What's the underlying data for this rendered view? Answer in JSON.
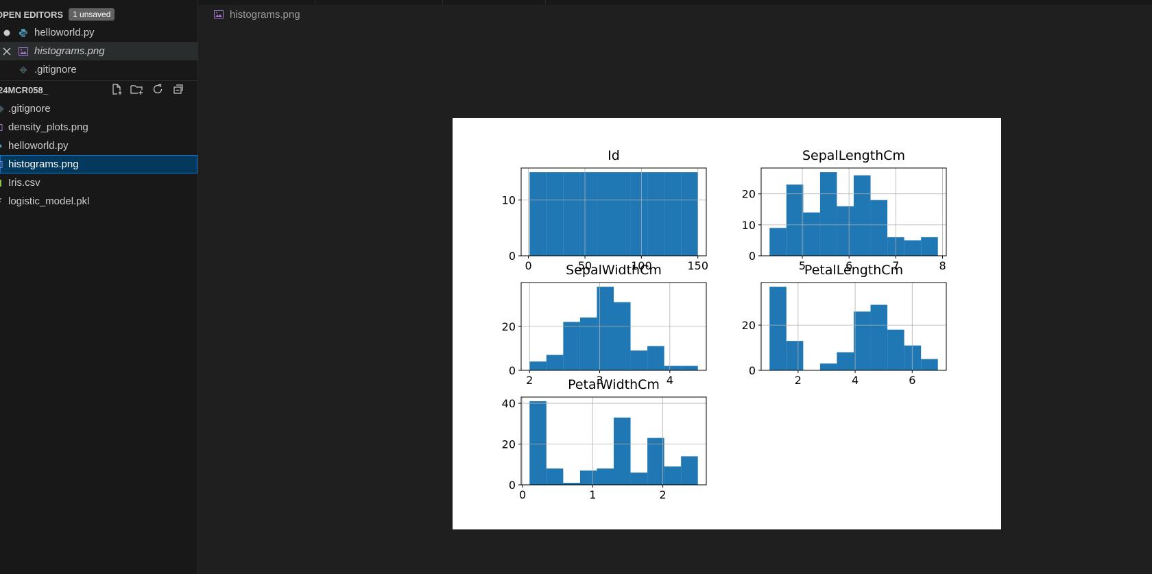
{
  "open_editors": {
    "title": "OPEN EDITORS",
    "badge": "1 unsaved",
    "items": [
      {
        "label": "helloworld.py",
        "icon": "python-icon",
        "state": "modified"
      },
      {
        "label": "histograms.png",
        "icon": "image-icon",
        "state": "active-preview"
      },
      {
        "label": ".gitignore",
        "icon": "git-icon",
        "state": "open"
      }
    ]
  },
  "explorer": {
    "folder": "24MCR058_",
    "files": [
      {
        "label": ".gitignore"
      },
      {
        "label": "density_plots.png"
      },
      {
        "label": "helloworld.py"
      },
      {
        "label": "histograms.png",
        "selected": true
      },
      {
        "label": "Iris.csv"
      },
      {
        "label": "logistic_model.pkl"
      }
    ]
  },
  "editor": {
    "tab_title": "histograms.png"
  },
  "colors": {
    "bar": "#1f77b4",
    "selection": "#04395e",
    "focus_border": "#0078d4"
  },
  "chart_data": [
    {
      "type": "bar",
      "title": "Id",
      "bins": [
        [
          1,
          15.9
        ],
        [
          15.9,
          30.8
        ],
        [
          30.8,
          45.7
        ],
        [
          45.7,
          60.6
        ],
        [
          60.6,
          75.5
        ],
        [
          75.5,
          90.4
        ],
        [
          90.4,
          105.3
        ],
        [
          105.3,
          120.2
        ],
        [
          120.2,
          135.1
        ],
        [
          135.1,
          150
        ]
      ],
      "values": [
        15,
        15,
        15,
        15,
        15,
        15,
        15,
        15,
        15,
        15
      ],
      "xlim": [
        -6.45,
        157.45
      ],
      "ylim": [
        0,
        15.75
      ],
      "xticks": [
        0,
        50,
        100,
        150
      ],
      "xtick_labels": [
        "0",
        "50",
        "100",
        "150"
      ],
      "yticks": [
        0,
        10
      ],
      "ytick_labels": [
        "0",
        "10"
      ],
      "grid": true
    },
    {
      "type": "bar",
      "title": "SepalLengthCm",
      "bins": [
        [
          4.3,
          4.66
        ],
        [
          4.66,
          5.02
        ],
        [
          5.02,
          5.38
        ],
        [
          5.38,
          5.74
        ],
        [
          5.74,
          6.1
        ],
        [
          6.1,
          6.46
        ],
        [
          6.46,
          6.82
        ],
        [
          6.82,
          7.18
        ],
        [
          7.18,
          7.54
        ],
        [
          7.54,
          7.9
        ]
      ],
      "values": [
        9,
        23,
        14,
        27,
        16,
        26,
        18,
        6,
        5,
        6
      ],
      "xlim": [
        4.12,
        8.08
      ],
      "ylim": [
        0,
        28.35
      ],
      "xticks": [
        5,
        6,
        7,
        8
      ],
      "xtick_labels": [
        "5",
        "6",
        "7",
        "8"
      ],
      "yticks": [
        0,
        10,
        20
      ],
      "ytick_labels": [
        "0",
        "10",
        "20"
      ],
      "grid": true
    },
    {
      "type": "bar",
      "title": "SepalWidthCm",
      "bins": [
        [
          2.0,
          2.24
        ],
        [
          2.24,
          2.48
        ],
        [
          2.48,
          2.72
        ],
        [
          2.72,
          2.96
        ],
        [
          2.96,
          3.2
        ],
        [
          3.2,
          3.44
        ],
        [
          3.44,
          3.68
        ],
        [
          3.68,
          3.92
        ],
        [
          3.92,
          4.16
        ],
        [
          4.16,
          4.4
        ]
      ],
      "values": [
        4,
        7,
        22,
        24,
        38,
        31,
        9,
        11,
        2,
        2
      ],
      "xlim": [
        1.88,
        4.52
      ],
      "ylim": [
        0,
        39.9
      ],
      "xticks": [
        2,
        3,
        4
      ],
      "xtick_labels": [
        "2",
        "3",
        "4"
      ],
      "yticks": [
        0,
        20
      ],
      "ytick_labels": [
        "0",
        "20"
      ],
      "grid": true
    },
    {
      "type": "bar",
      "title": "PetalLengthCm",
      "bins": [
        [
          1.0,
          1.59
        ],
        [
          1.59,
          2.18
        ],
        [
          2.18,
          2.77
        ],
        [
          2.77,
          3.36
        ],
        [
          3.36,
          3.95
        ],
        [
          3.95,
          4.54
        ],
        [
          4.54,
          5.13
        ],
        [
          5.13,
          5.72
        ],
        [
          5.72,
          6.31
        ],
        [
          6.31,
          6.9
        ]
      ],
      "values": [
        37,
        13,
        0,
        3,
        8,
        26,
        29,
        18,
        11,
        5
      ],
      "xlim": [
        0.705,
        7.195
      ],
      "ylim": [
        0,
        38.85
      ],
      "xticks": [
        2,
        4,
        6
      ],
      "xtick_labels": [
        "2",
        "4",
        "6"
      ],
      "yticks": [
        0,
        20
      ],
      "ytick_labels": [
        "0",
        "20"
      ],
      "grid": true
    },
    {
      "type": "bar",
      "title": "PetalWidthCm",
      "bins": [
        [
          0.1,
          0.34
        ],
        [
          0.34,
          0.58
        ],
        [
          0.58,
          0.82
        ],
        [
          0.82,
          1.06
        ],
        [
          1.06,
          1.3
        ],
        [
          1.3,
          1.54
        ],
        [
          1.54,
          1.78
        ],
        [
          1.78,
          2.02
        ],
        [
          2.02,
          2.26
        ],
        [
          2.26,
          2.5
        ]
      ],
      "values": [
        41,
        8,
        1,
        7,
        8,
        33,
        6,
        23,
        9,
        14
      ],
      "xlim": [
        -0.02,
        2.62
      ],
      "ylim": [
        0,
        43.05
      ],
      "xticks": [
        0,
        1,
        2
      ],
      "xtick_labels": [
        "0",
        "1",
        "2"
      ],
      "yticks": [
        0,
        20,
        40
      ],
      "ytick_labels": [
        "0",
        "20",
        "40"
      ],
      "grid": true
    }
  ]
}
